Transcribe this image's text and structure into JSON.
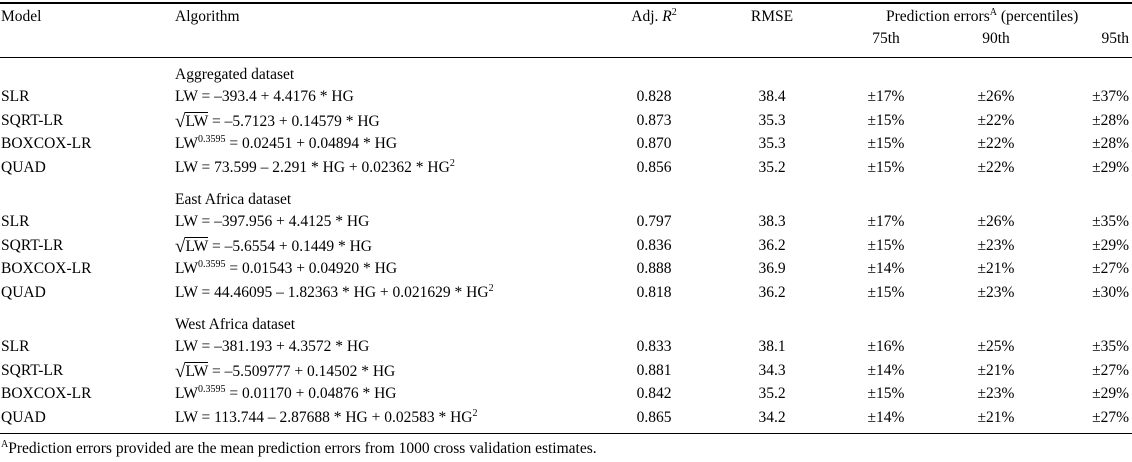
{
  "headers": {
    "model": "Model",
    "algorithm": "Algorithm",
    "adj_r2_prefix": "Adj. ",
    "adj_r2_var": "R",
    "adj_r2_sup": "2",
    "rmse": "RMSE",
    "pred_errors_prefix": "Prediction errors",
    "pred_errors_sup": "A",
    "pred_errors_suffix": " (percentiles)",
    "p75": "75th",
    "p90": "90th",
    "p95": "95th"
  },
  "sections": [
    {
      "title": "Aggregated dataset",
      "rows": [
        {
          "model": "SLR",
          "formula": {
            "lead": "LW = –393.4 + 4.4176 * HG"
          },
          "adj_r2": "0.828",
          "rmse": "38.4",
          "p75": "±17%",
          "p90": "±26%",
          "p95": "±37%"
        },
        {
          "model": "SQRT-LR",
          "formula": {
            "sqrt": "√",
            "radicand": "LW",
            "rest": " = –5.7123 + 0.14579 * HG"
          },
          "adj_r2": "0.873",
          "rmse": "35.3",
          "p75": "±15%",
          "p90": "±22%",
          "p95": "±28%"
        },
        {
          "model": "BOXCOX-LR",
          "formula": {
            "lead": "LW",
            "sup": "0.3595",
            "rest": " = 0.02451 + 0.04894 * HG"
          },
          "adj_r2": "0.870",
          "rmse": "35.3",
          "p75": "±15%",
          "p90": "±22%",
          "p95": "±28%"
        },
        {
          "model": "QUAD",
          "formula": {
            "lead": "LW = 73.599 – 2.291 * HG + 0.02362 * HG",
            "tailsup": "2"
          },
          "adj_r2": "0.856",
          "rmse": "35.2",
          "p75": "±15%",
          "p90": "±22%",
          "p95": "±29%"
        }
      ]
    },
    {
      "title": "East Africa dataset",
      "rows": [
        {
          "model": "SLR",
          "formula": {
            "lead": "LW = –397.956 + 4.4125 * HG"
          },
          "adj_r2": "0.797",
          "rmse": "38.3",
          "p75": "±17%",
          "p90": "±26%",
          "p95": "±35%"
        },
        {
          "model": "SQRT-LR",
          "formula": {
            "sqrt": "√",
            "radicand": "LW",
            "rest": " = –5.6554 + 0.1449 * HG"
          },
          "adj_r2": "0.836",
          "rmse": "36.2",
          "p75": "±15%",
          "p90": "±23%",
          "p95": "±29%"
        },
        {
          "model": "BOXCOX-LR",
          "formula": {
            "lead": "LW",
            "sup": "0.3595",
            "rest": " = 0.01543 + 0.04920 * HG"
          },
          "adj_r2": "0.888",
          "rmse": "36.9",
          "p75": "±14%",
          "p90": "±21%",
          "p95": "±27%"
        },
        {
          "model": "QUAD",
          "formula": {
            "lead": "LW = 44.46095 – 1.82363 * HG + 0.021629 * HG",
            "tailsup": "2"
          },
          "adj_r2": "0.818",
          "rmse": "36.2",
          "p75": "±15%",
          "p90": "±23%",
          "p95": "±30%"
        }
      ]
    },
    {
      "title": "West Africa dataset",
      "rows": [
        {
          "model": "SLR",
          "formula": {
            "lead": "LW = –381.193 + 4.3572 * HG"
          },
          "adj_r2": "0.833",
          "rmse": "38.1",
          "p75": "±16%",
          "p90": "±25%",
          "p95": "±35%"
        },
        {
          "model": "SQRT-LR",
          "formula": {
            "sqrt": "√",
            "radicand": "LW",
            "rest": " = –5.509777 + 0.14502 * HG"
          },
          "adj_r2": "0.881",
          "rmse": "34.3",
          "p75": "±14%",
          "p90": "±21%",
          "p95": "±27%"
        },
        {
          "model": "BOXCOX-LR",
          "formula": {
            "lead": "LW",
            "sup": "0.3595",
            "rest": " = 0.01170 + 0.04876 * HG"
          },
          "adj_r2": "0.842",
          "rmse": "35.2",
          "p75": "±15%",
          "p90": "±23%",
          "p95": "±29%"
        },
        {
          "model": "QUAD",
          "formula": {
            "lead": "LW = 113.744 – 2.87688 * HG + 0.02583 * HG",
            "tailsup": "2"
          },
          "adj_r2": "0.865",
          "rmse": "34.2",
          "p75": "±14%",
          "p90": "±21%",
          "p95": "±27%"
        }
      ]
    }
  ],
  "footnote": {
    "sup": "A",
    "text": "Prediction errors provided are the mean prediction errors from 1000 cross validation estimates."
  }
}
